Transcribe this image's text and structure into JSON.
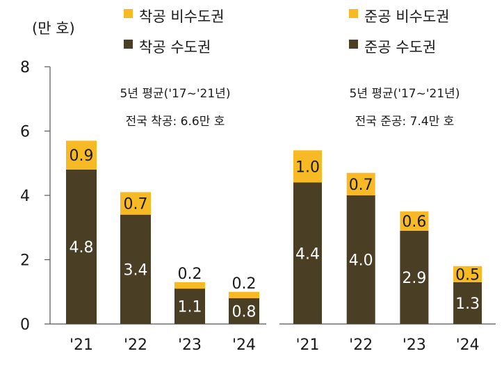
{
  "unit_label": "(만 호)",
  "colors": {
    "metro": "#4a3f25",
    "non_metro": "#f7b924",
    "axis": "#555555"
  },
  "chart_data": [
    {
      "type": "bar",
      "stacked": true,
      "categories": [
        "'21",
        "'22",
        "'23",
        "'24"
      ],
      "series": [
        {
          "name": "착공 수도권",
          "values": [
            4.8,
            3.4,
            1.1,
            0.8
          ]
        },
        {
          "name": "착공 비수도권",
          "values": [
            0.9,
            0.7,
            0.2,
            0.2
          ]
        }
      ],
      "ylim": [
        0,
        8
      ],
      "yticks": [
        0,
        2,
        4,
        6,
        8
      ],
      "legend": [
        "착공 비수도권",
        "착공 수도권"
      ],
      "annotation": [
        "5년 평균('17~'21년)",
        "전국 착공: 6.6만 호"
      ]
    },
    {
      "type": "bar",
      "stacked": true,
      "categories": [
        "'21",
        "'22",
        "'23",
        "'24"
      ],
      "series": [
        {
          "name": "준공 수도권",
          "values": [
            4.4,
            4.0,
            2.9,
            1.3
          ]
        },
        {
          "name": "준공 비수도권",
          "values": [
            1.0,
            0.7,
            0.6,
            0.5
          ]
        }
      ],
      "ylim": [
        0,
        8
      ],
      "legend": [
        "준공 비수도권",
        "준공 수도권"
      ],
      "annotation": [
        "5년 평균('17~'21년)",
        "전국 준공: 7.4만 호"
      ]
    }
  ]
}
